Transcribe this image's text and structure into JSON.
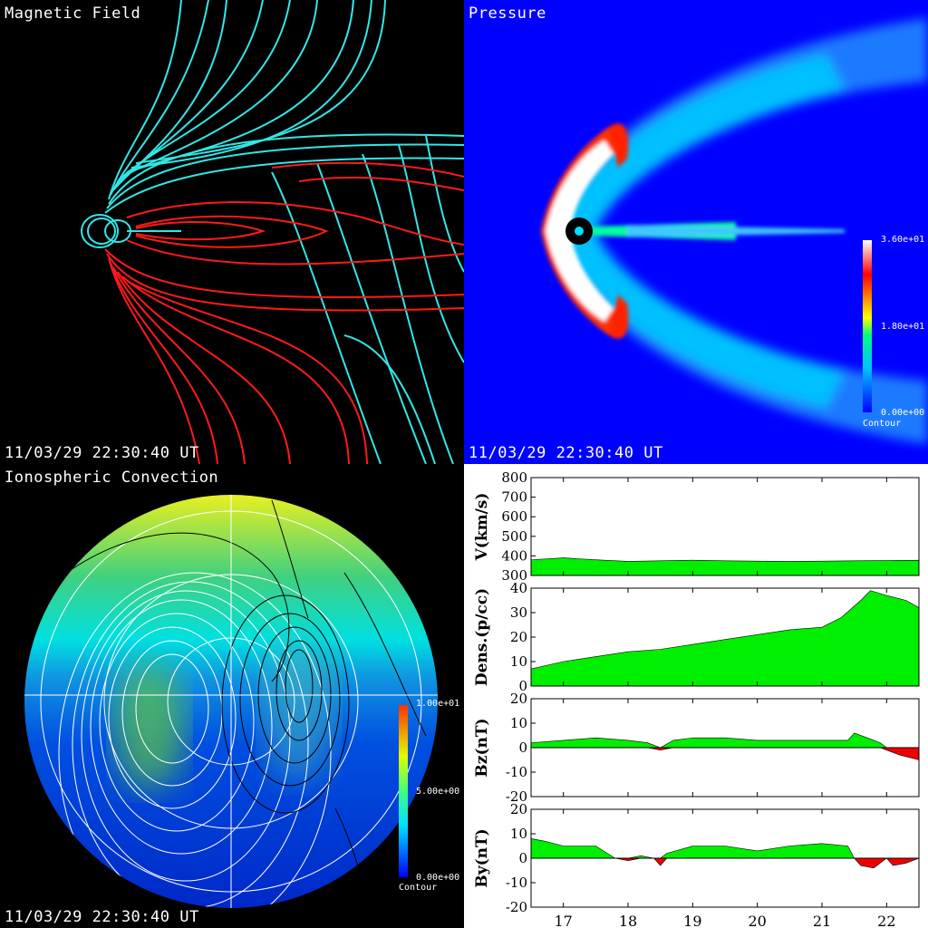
{
  "panels": {
    "magnetic": {
      "title": "Magnetic Field",
      "timestamp": "11/03/29 22:30:40 UT",
      "colors": {
        "field_open": "#33e6e6",
        "field_closed": "#ff1a1a"
      }
    },
    "pressure": {
      "title": "Pressure",
      "timestamp": "11/03/29 22:30:40 UT",
      "colorbar": {
        "max": "3.60e+01",
        "mid": "1.80e+01",
        "min": "0.00e+00",
        "caption": "Contour"
      }
    },
    "ionosphere": {
      "title": "Ionospheric Convection",
      "timestamp": "11/03/29 22:30:40 UT",
      "colorbar": {
        "max": "1.00e+01",
        "mid": "5.00e+00",
        "min": "0.00e+00",
        "caption": "Contour"
      }
    }
  },
  "chart_data": [
    {
      "type": "area",
      "ylabel": "V(km/s)",
      "ylim": [
        300,
        800
      ],
      "yticks": [
        300,
        400,
        500,
        600,
        700,
        800
      ],
      "x": [
        16.5,
        17,
        17.5,
        18,
        18.5,
        19,
        19.5,
        20,
        20.5,
        21,
        21.5,
        22,
        22.5
      ],
      "values": [
        380,
        390,
        380,
        372,
        375,
        378,
        375,
        373,
        372,
        373,
        375,
        376,
        378
      ]
    },
    {
      "type": "area",
      "ylabel": "Dens.(p/cc)",
      "ylim": [
        0,
        40
      ],
      "yticks": [
        0,
        10,
        20,
        30,
        40
      ],
      "x": [
        16.5,
        17,
        17.5,
        18,
        18.5,
        19,
        19.5,
        20,
        20.5,
        21,
        21.3,
        21.6,
        21.75,
        22,
        22.3,
        22.5
      ],
      "values": [
        7,
        10,
        12,
        14,
        15,
        17,
        19,
        21,
        23,
        24,
        28,
        35,
        39,
        37,
        35,
        32
      ]
    },
    {
      "type": "area",
      "ylabel": "Bz(nT)",
      "ylim": [
        -20,
        20
      ],
      "yticks": [
        -20,
        -10,
        0,
        10,
        20
      ],
      "x": [
        16.5,
        17,
        17.5,
        18,
        18.3,
        18.5,
        18.7,
        19,
        19.5,
        20,
        20.5,
        21,
        21.4,
        21.5,
        21.7,
        21.9,
        22,
        22.2,
        22.5
      ],
      "values": [
        2,
        3,
        4,
        3,
        2,
        -1,
        3,
        4,
        4,
        3,
        3,
        3,
        3,
        6,
        4,
        2,
        -1,
        -3,
        -5
      ]
    },
    {
      "type": "area",
      "ylabel": "By(nT)",
      "ylim": [
        -20,
        20
      ],
      "yticks": [
        -20,
        -10,
        0,
        10,
        20
      ],
      "x": [
        16.5,
        16.7,
        17,
        17.5,
        17.8,
        18,
        18.2,
        18.4,
        18.5,
        18.6,
        19,
        19.5,
        20,
        20.5,
        21,
        21.4,
        21.5,
        21.6,
        21.8,
        22,
        22.1,
        22.3,
        22.5
      ],
      "values": [
        8,
        7,
        5,
        5,
        0,
        -1,
        1,
        0,
        -3,
        2,
        5,
        5,
        3,
        5,
        6,
        5,
        0,
        -3,
        -4,
        0,
        -3,
        -2,
        0
      ]
    }
  ],
  "x_axis": {
    "ticks": [
      "17",
      "18",
      "19",
      "20",
      "21",
      "22"
    ],
    "tick_values": [
      17,
      18,
      19,
      20,
      21,
      22
    ],
    "range": [
      16.5,
      22.5
    ]
  },
  "fill_colors": {
    "positive": "#00ee00",
    "negative": "#ee0000"
  }
}
